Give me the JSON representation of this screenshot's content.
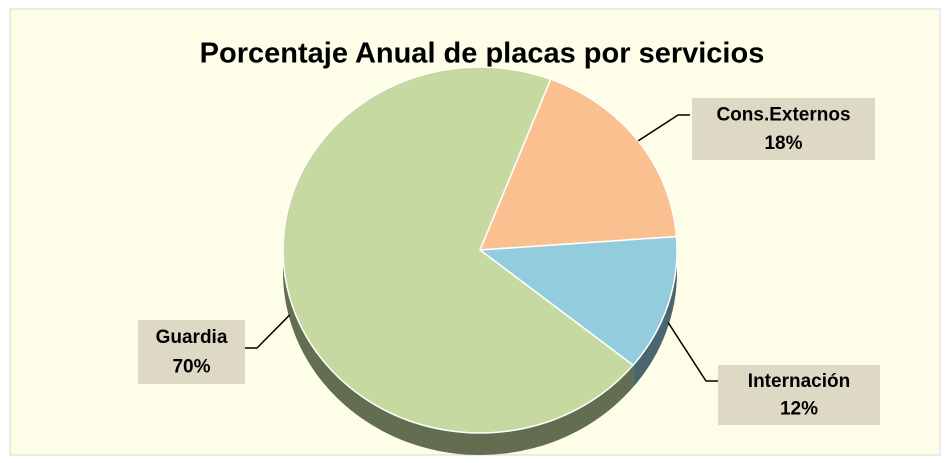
{
  "chart_data": {
    "type": "pie",
    "title": "Porcentaje Anual de placas por servicios",
    "categories": [
      "Cons.Externos",
      "Internación",
      "Guardia"
    ],
    "values": [
      18,
      12,
      70
    ],
    "value_labels": [
      "18%",
      "12%",
      "70%"
    ],
    "colors": [
      "#fac090",
      "#93cddd",
      "#c6d9a0"
    ]
  }
}
